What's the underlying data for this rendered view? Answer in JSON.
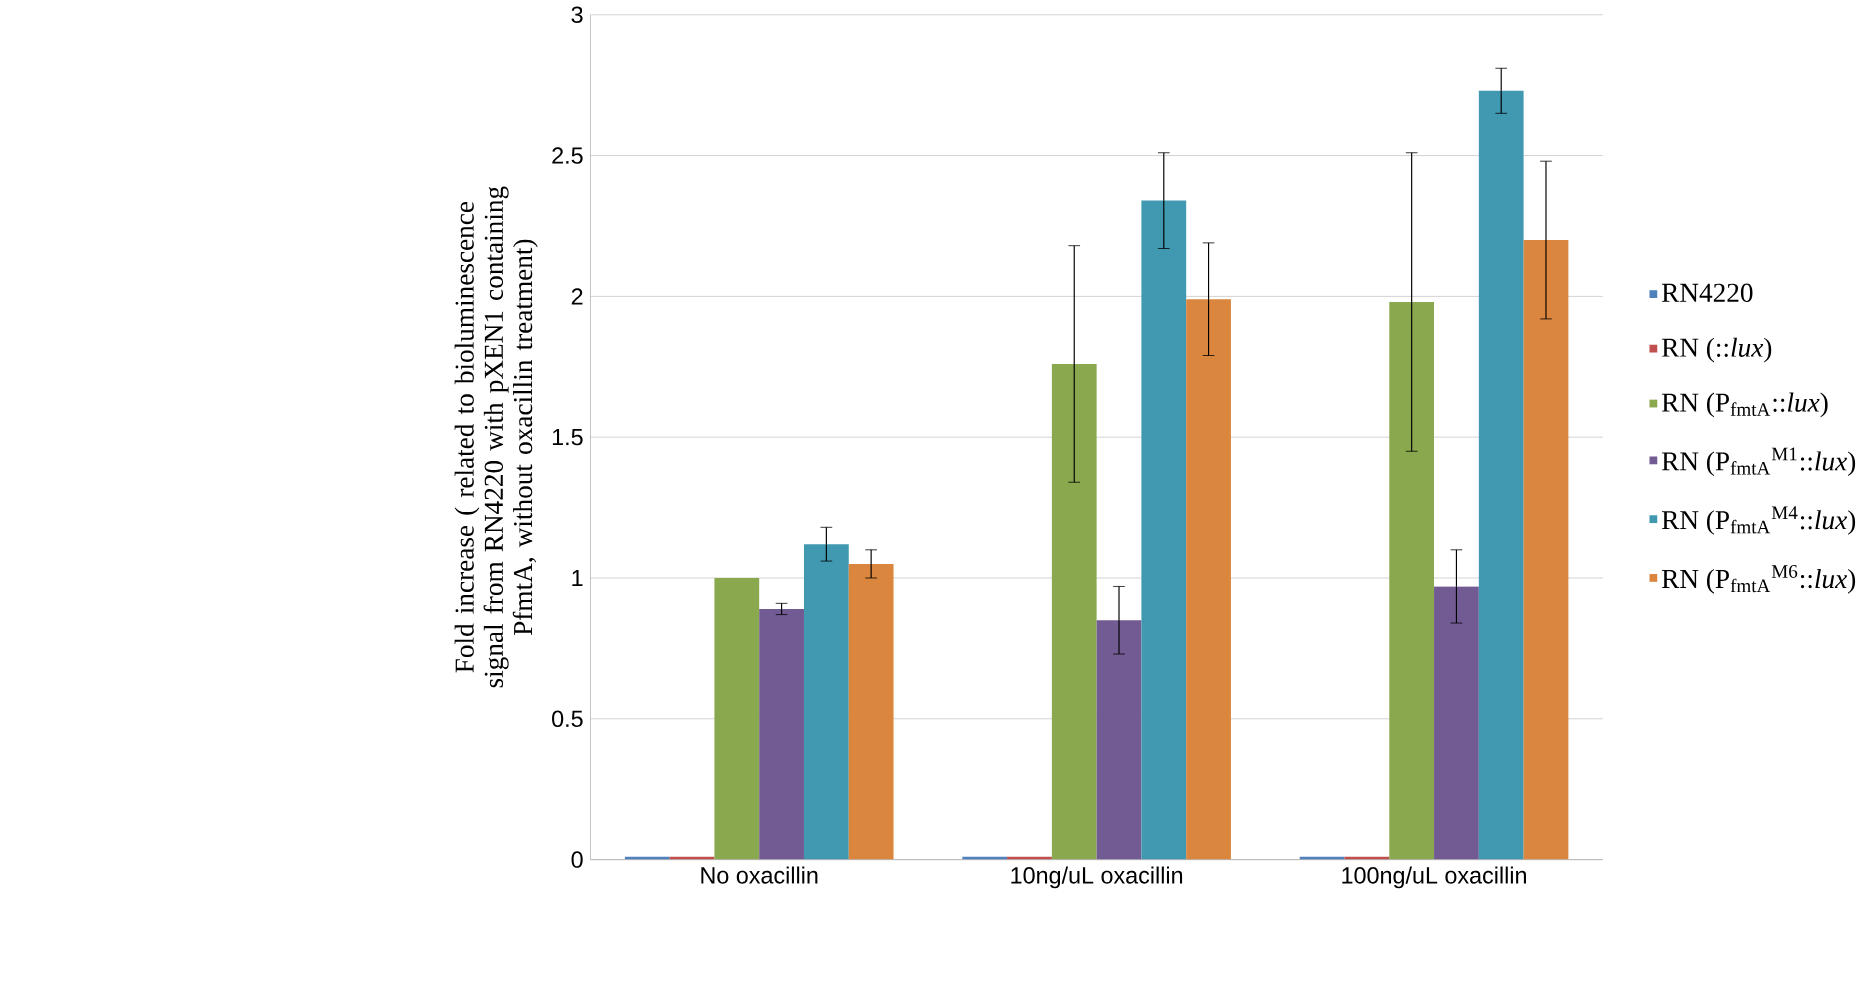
{
  "chart_data": {
    "type": "bar",
    "ylabel": "Fold  increase ( related to bioluminescence signal from RN4220 with pXEN1 containing PfmtA, without oxacillin treatment)",
    "categories": [
      "No oxacillin",
      "10ng/uL oxacillin",
      "100ng/uL oxacillin"
    ],
    "series": [
      {
        "name": "RN4220",
        "color": "#4f81bd",
        "values": [
          0.01,
          0.01,
          0.01
        ]
      },
      {
        "name": "RN (::*lux*)",
        "color": "#c0504d",
        "values": [
          0.01,
          0.01,
          0.01
        ]
      },
      {
        "name": "RN (P$_{fmtA}$::*lux*)",
        "color": "#8aa84e",
        "values": [
          1.0,
          1.76,
          1.98
        ],
        "errors": [
          null,
          0.42,
          0.53
        ]
      },
      {
        "name": "RN (P$_{fmtA}$$^{M1}$::*lux*)",
        "color": "#725a92",
        "values": [
          0.89,
          0.85,
          0.97
        ],
        "errors": [
          0.02,
          0.12,
          0.13
        ]
      },
      {
        "name": "RN (P$_{fmtA}$$^{M4}$::*lux*)",
        "color": "#4199b1",
        "values": [
          1.12,
          2.34,
          2.73
        ],
        "errors": [
          0.06,
          0.17,
          0.08
        ]
      },
      {
        "name": "RN (P$_{fmtA}$$^{M6}$::*lux*)",
        "color": "#db863e",
        "values": [
          1.05,
          1.99,
          2.2
        ],
        "errors": [
          0.05,
          0.2,
          0.28
        ]
      }
    ],
    "ylim": [
      0,
      3
    ],
    "yticks": [
      0,
      0.5,
      1,
      1.5,
      2,
      2.5,
      3
    ],
    "grid": "y",
    "legend": "right"
  }
}
